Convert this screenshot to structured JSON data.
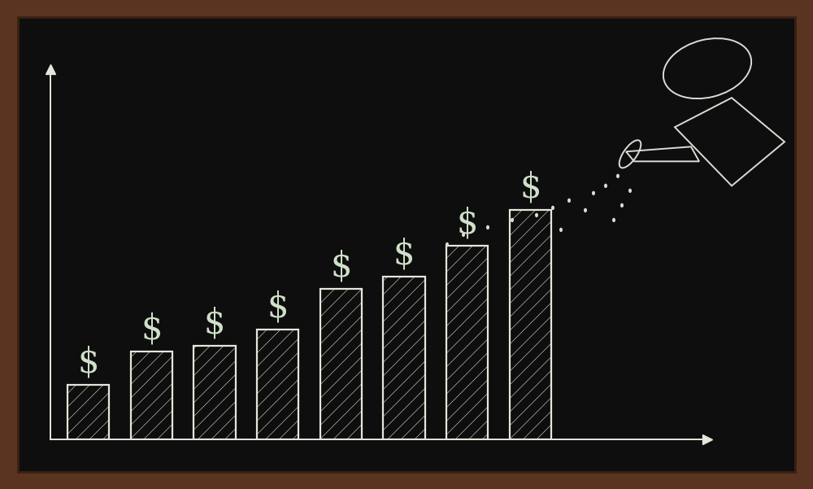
{
  "chart_data": {
    "type": "bar",
    "categories": [
      null,
      null,
      null,
      null,
      null,
      null,
      null,
      null
    ],
    "values": [
      67,
      108,
      115,
      135,
      185,
      200,
      238,
      282
    ],
    "annotations": [
      "$",
      "$",
      "$",
      "$",
      "$",
      "$",
      "$",
      "$"
    ],
    "color": "#e6e6dc",
    "ylim": [
      0,
      455
    ],
    "yticks": [],
    "grid": false,
    "tick_labels": false
  }
}
